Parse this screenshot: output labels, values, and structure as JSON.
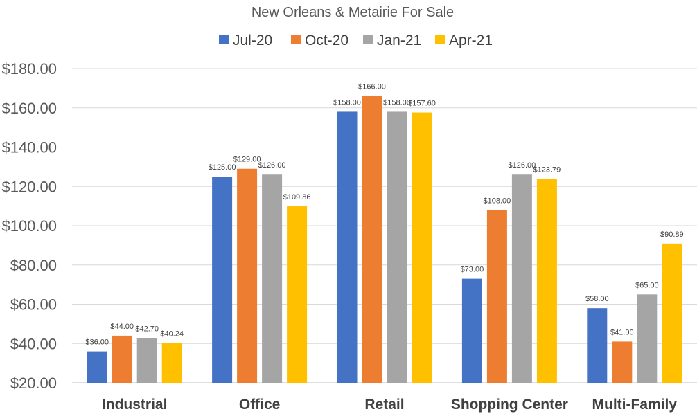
{
  "chart_data": {
    "type": "bar",
    "title": "New Orleans & Metairie For Sale",
    "xlabel": "",
    "ylabel": "",
    "categories": [
      "Industrial",
      "Office",
      "Retail",
      "Shopping Center",
      "Multi-Family"
    ],
    "series": [
      {
        "name": "Jul-20",
        "color": "#4472C4",
        "values": [
          36,
          125,
          158,
          73,
          58
        ],
        "labels": [
          "$36.00",
          "$125.00",
          "$158.00",
          "$73.00",
          "$58.00"
        ]
      },
      {
        "name": "Oct-20",
        "color": "#ED7D31",
        "values": [
          44,
          129,
          166,
          108,
          41
        ],
        "labels": [
          "$44.00",
          "$129.00",
          "$166.00",
          "$108.00",
          "$41.00"
        ]
      },
      {
        "name": "Jan-21",
        "color": "#A5A5A5",
        "values": [
          42.7,
          126,
          158,
          126,
          65
        ],
        "labels": [
          "$42.70",
          "$126.00",
          "$158.00",
          "$126.00",
          "$65.00"
        ]
      },
      {
        "name": "Apr-21",
        "color": "#FFC000",
        "values": [
          40.24,
          109.86,
          157.6,
          123.79,
          90.89
        ],
        "labels": [
          "$40.24",
          "$109.86",
          "$157.60",
          "$123.79",
          "$90.89"
        ]
      }
    ],
    "ylim": [
      20,
      180
    ],
    "yticks": [
      20,
      40,
      60,
      80,
      100,
      120,
      140,
      160,
      180
    ],
    "ytick_labels": [
      "$20.00",
      "$40.00",
      "$60.00",
      "$80.00",
      "$100.00",
      "$120.00",
      "$140.00",
      "$160.00",
      "$180.00"
    ],
    "grid": true,
    "legend": "top-center"
  }
}
